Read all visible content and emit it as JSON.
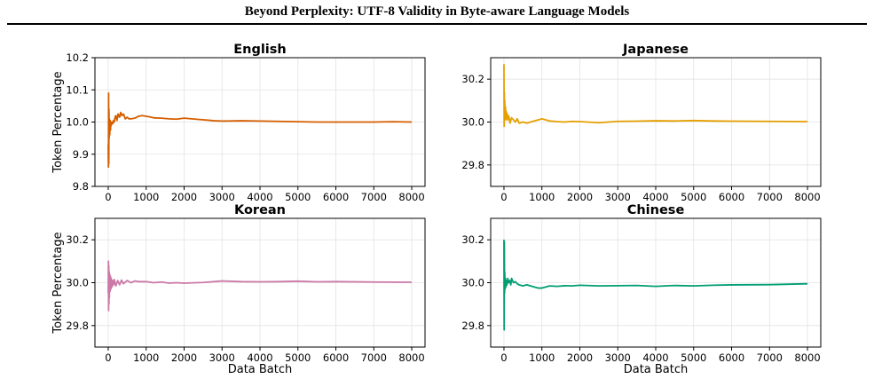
{
  "page": {
    "title": "Beyond Perplexity: UTF-8 Validity in Byte-aware Language Models"
  },
  "chart_data": [
    {
      "type": "line",
      "title": "English",
      "xlabel": "",
      "ylabel": "Token Percentage",
      "xlim": [
        -350,
        8350
      ],
      "ylim": [
        9.8,
        10.2
      ],
      "xticks": [
        0,
        1000,
        2000,
        3000,
        4000,
        5000,
        6000,
        7000,
        8000
      ],
      "yticks": [
        9.8,
        9.9,
        10.0,
        10.1,
        10.2
      ],
      "ytick_labels": [
        "9.8",
        "9.9",
        "10.0",
        "10.1",
        "10.2"
      ],
      "grid": true,
      "color": "#d55e00",
      "series": [
        {
          "x": [
            0,
            5,
            10,
            15,
            20,
            25,
            30,
            40,
            50,
            60,
            70,
            80,
            100,
            120,
            140,
            160,
            180,
            200,
            230,
            260,
            300,
            330,
            360,
            400,
            450,
            500,
            550,
            600,
            700,
            800,
            900,
            1000,
            1100,
            1200,
            1400,
            1600,
            1800,
            2000,
            2200,
            2400,
            2600,
            2800,
            3000,
            3500,
            4000,
            4500,
            5000,
            5500,
            6000,
            6500,
            7000,
            7500,
            8000
          ],
          "y": [
            9.93,
            9.86,
            10.09,
            9.87,
            10.04,
            9.95,
            10.01,
            9.96,
            10.005,
            9.975,
            10.0,
            9.99,
            10.0,
            9.995,
            10.005,
            10.0,
            10.015,
            10.02,
            10.005,
            10.025,
            10.015,
            10.03,
            10.02,
            10.025,
            10.01,
            10.015,
            10.01,
            10.01,
            10.012,
            10.018,
            10.02,
            10.018,
            10.016,
            10.013,
            10.012,
            10.01,
            10.009,
            10.012,
            10.01,
            10.008,
            10.006,
            10.004,
            10.003,
            10.004,
            10.003,
            10.002,
            10.001,
            10.0,
            10.0,
            10.0,
            10.0,
            10.001,
            10.0
          ]
        }
      ]
    },
    {
      "type": "line",
      "title": "Japanese",
      "xlabel": "",
      "ylabel": "",
      "xlim": [
        -350,
        8350
      ],
      "ylim": [
        29.7,
        30.3
      ],
      "xticks": [
        0,
        1000,
        2000,
        3000,
        4000,
        5000,
        6000,
        7000,
        8000
      ],
      "yticks": [
        29.8,
        30.0,
        30.2
      ],
      "ytick_labels": [
        "29.8",
        "30.0",
        "30.2"
      ],
      "grid": true,
      "color": "#e69f00",
      "series": [
        {
          "x": [
            0,
            5,
            10,
            15,
            20,
            30,
            40,
            50,
            60,
            70,
            80,
            100,
            120,
            140,
            160,
            200,
            250,
            300,
            350,
            400,
            500,
            600,
            700,
            800,
            900,
            1000,
            1200,
            1400,
            1600,
            1800,
            2000,
            2500,
            3000,
            3500,
            4000,
            4500,
            5000,
            5500,
            6000,
            7000,
            8000
          ],
          "y": [
            30.27,
            29.98,
            30.14,
            30.02,
            30.1,
            30.03,
            30.07,
            30.01,
            30.05,
            30.02,
            30.04,
            30.01,
            30.03,
            30.015,
            29.995,
            30.02,
            30.01,
            30.0,
            30.015,
            29.995,
            30.0,
            29.995,
            30.0,
            30.005,
            30.01,
            30.015,
            30.005,
            30.002,
            30.0,
            30.003,
            30.002,
            29.997,
            30.003,
            30.004,
            30.006,
            30.005,
            30.007,
            30.005,
            30.004,
            30.003,
            30.002
          ]
        }
      ]
    },
    {
      "type": "line",
      "title": "Korean",
      "xlabel": "Data Batch",
      "ylabel": "Token Percentage",
      "xlim": [
        -350,
        8350
      ],
      "ylim": [
        29.7,
        30.3
      ],
      "xticks": [
        0,
        1000,
        2000,
        3000,
        4000,
        5000,
        6000,
        7000,
        8000
      ],
      "yticks": [
        29.8,
        30.0,
        30.2
      ],
      "ytick_labels": [
        "29.8",
        "30.0",
        "30.2"
      ],
      "grid": true,
      "color": "#cc79a7",
      "series": [
        {
          "x": [
            0,
            5,
            10,
            15,
            20,
            25,
            30,
            40,
            50,
            60,
            70,
            80,
            100,
            120,
            140,
            160,
            200,
            250,
            300,
            350,
            400,
            500,
            600,
            700,
            800,
            1000,
            1200,
            1400,
            1600,
            1800,
            2000,
            2500,
            3000,
            3500,
            4000,
            4500,
            5000,
            5500,
            6000,
            7000,
            8000
          ],
          "y": [
            29.95,
            30.1,
            29.87,
            30.08,
            29.9,
            30.05,
            29.93,
            30.04,
            29.96,
            30.03,
            29.97,
            30.02,
            29.98,
            30.01,
            29.99,
            30.015,
            29.985,
            30.01,
            29.99,
            30.012,
            29.995,
            30.01,
            30.0,
            30.008,
            30.005,
            30.005,
            30.0,
            30.003,
            29.998,
            30.0,
            29.998,
            30.001,
            30.008,
            30.005,
            30.004,
            30.005,
            30.007,
            30.004,
            30.005,
            30.003,
            30.002
          ]
        }
      ]
    },
    {
      "type": "line",
      "title": "Chinese",
      "xlabel": "Data Batch",
      "ylabel": "",
      "xlim": [
        -350,
        8350
      ],
      "ylim": [
        29.7,
        30.3
      ],
      "xticks": [
        0,
        1000,
        2000,
        3000,
        4000,
        5000,
        6000,
        7000,
        8000
      ],
      "yticks": [
        29.8,
        30.0,
        30.2
      ],
      "ytick_labels": [
        "29.8",
        "30.0",
        "30.2"
      ],
      "grid": true,
      "color": "#009e73",
      "series": [
        {
          "x": [
            0,
            5,
            10,
            15,
            20,
            30,
            40,
            50,
            60,
            80,
            100,
            120,
            150,
            180,
            200,
            250,
            300,
            350,
            400,
            500,
            600,
            700,
            800,
            900,
            1000,
            1100,
            1200,
            1400,
            1600,
            1800,
            2000,
            2500,
            3000,
            3500,
            4000,
            4500,
            5000,
            5500,
            6000,
            7000,
            8000
          ],
          "y": [
            30.2,
            29.78,
            30.19,
            29.95,
            30.05,
            29.97,
            30.02,
            29.98,
            30.01,
            29.99,
            30.02,
            30.0,
            30.01,
            29.99,
            30.02,
            30.0,
            30.005,
            29.995,
            29.99,
            29.985,
            29.99,
            29.985,
            29.98,
            29.975,
            29.975,
            29.98,
            29.985,
            29.983,
            29.986,
            29.985,
            29.988,
            29.985,
            29.986,
            29.987,
            29.983,
            29.987,
            29.985,
            29.988,
            29.99,
            29.991,
            29.995
          ]
        }
      ]
    }
  ]
}
